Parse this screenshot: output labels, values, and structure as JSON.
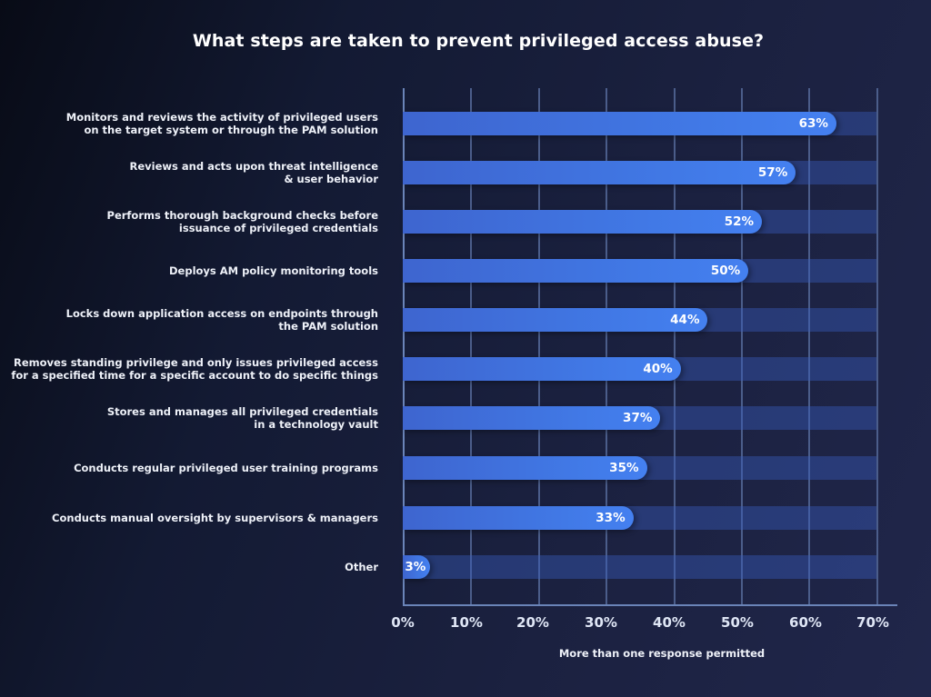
{
  "title": "What steps are taken to prevent privileged access abuse?",
  "footnote": "More than one response permitted",
  "colors": {
    "background_dark": "#080b16",
    "background_light": "#20264a",
    "bar": "#4179e6",
    "track": "#2a3a72",
    "gridline": "#4b5d8a",
    "axis": "#6a84b8",
    "text": "#ffffff"
  },
  "axis": {
    "ticks": [
      "0%",
      "10%",
      "20%",
      "30%",
      "40%",
      "50%",
      "60%",
      "70%"
    ]
  },
  "bars": [
    {
      "label_line1": "Monitors and reviews the activity of privileged users",
      "label_line2": "on the target system or through the PAM solution",
      "value": 63,
      "value_label": "63%"
    },
    {
      "label_line1": "Reviews and acts upon threat intelligence",
      "label_line2": "& user behavior",
      "value": 57,
      "value_label": "57%"
    },
    {
      "label_line1": "Performs thorough background checks before",
      "label_line2": "issuance of privileged credentials",
      "value": 52,
      "value_label": "52%"
    },
    {
      "label_line1": "Deploys AM policy monitoring tools",
      "label_line2": "",
      "value": 50,
      "value_label": "50%"
    },
    {
      "label_line1": "Locks down application access on endpoints through",
      "label_line2": "the PAM solution",
      "value": 44,
      "value_label": "44%"
    },
    {
      "label_line1": "Removes standing privilege and only issues privileged access",
      "label_line2": "for a specified time for a specific account to do specific things",
      "value": 40,
      "value_label": "40%"
    },
    {
      "label_line1": "Stores and manages all privileged credentials",
      "label_line2": "in a technology vault",
      "value": 37,
      "value_label": "37%"
    },
    {
      "label_line1": "Conducts regular privileged user training programs",
      "label_line2": "",
      "value": 35,
      "value_label": "35%"
    },
    {
      "label_line1": "Conducts manual oversight by supervisors & managers",
      "label_line2": "",
      "value": 33,
      "value_label": "33%"
    },
    {
      "label_line1": "Other",
      "label_line2": "",
      "value": 3,
      "value_label": "3%"
    }
  ],
  "chart_data": {
    "type": "bar",
    "orientation": "horizontal",
    "title": "What steps are taken to prevent privileged access abuse?",
    "categories": [
      "Monitors and reviews the activity of privileged users on the target system or through the PAM solution",
      "Reviews and acts upon threat intelligence & user behavior",
      "Performs thorough background checks before issuance of privileged credentials",
      "Deploys AM policy monitoring tools",
      "Locks down application access on endpoints through the PAM solution",
      "Removes standing privilege and only issues privileged access for a specified time for a specific account to do specific things",
      "Stores and manages all privileged credentials in a technology vault",
      "Conducts regular privileged user training programs",
      "Conducts manual oversight by supervisors & managers",
      "Other"
    ],
    "values": [
      63,
      57,
      52,
      50,
      44,
      40,
      37,
      35,
      33,
      3
    ],
    "value_labels": [
      "63%",
      "57%",
      "52%",
      "50%",
      "44%",
      "40%",
      "37%",
      "35%",
      "33%",
      "3%"
    ],
    "xlabel": "",
    "ylabel": "",
    "xlim": [
      0,
      70
    ],
    "x_ticks": [
      "0%",
      "10%",
      "20%",
      "30%",
      "40%",
      "50%",
      "60%",
      "70%"
    ],
    "grid": "vertical",
    "legend": "none",
    "annotation": "More than one response permitted"
  }
}
